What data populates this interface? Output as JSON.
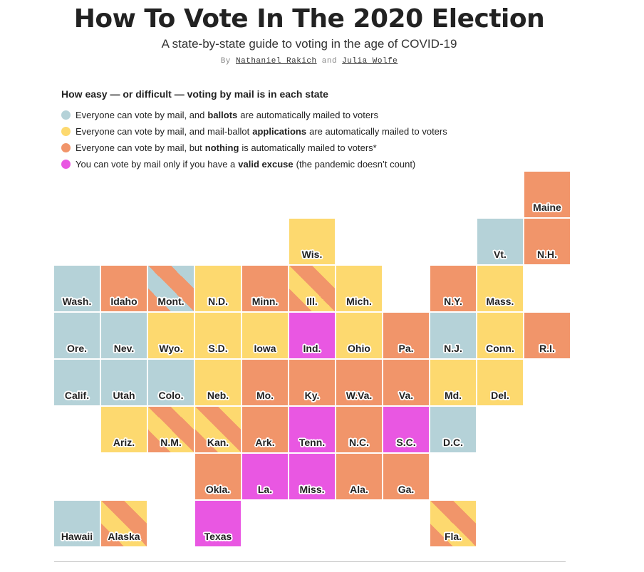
{
  "header": {
    "title": "How To Vote In The 2020 Election",
    "subtitle": "A state-by-state guide to voting in the age of COVID-19",
    "by": "By",
    "author1": "Nathaniel Rakich",
    "and": "and",
    "author2": "Julia Wolfe"
  },
  "colors": {
    "ballots": "#b5d2d8",
    "applications": "#fdd96f",
    "nothing": "#f1956a",
    "excuse": "#e957e2"
  },
  "legend": {
    "title": "How easy — or difficult — voting by mail is in each state",
    "items": [
      {
        "cat": "ballots",
        "pre": "Everyone can vote by mail, and",
        "bold": "ballots",
        "post": "are automatically mailed to voters"
      },
      {
        "cat": "applications",
        "pre": "Everyone can vote by mail, and mail-ballot",
        "bold": "applications",
        "post": "are automatically mailed to voters"
      },
      {
        "cat": "nothing",
        "pre": "Everyone can vote by mail, but",
        "bold": "nothing",
        "post": "is automatically mailed to voters*"
      },
      {
        "cat": "excuse",
        "pre": "You can vote by mail only if you have a",
        "bold": "valid excuse",
        "post": "(the pandemic doesn’t count)"
      }
    ]
  },
  "states": [
    {
      "label": "Maine",
      "row": 0,
      "col": 10,
      "fill": [
        "nothing"
      ]
    },
    {
      "label": "Wis.",
      "row": 1,
      "col": 5,
      "fill": [
        "applications"
      ]
    },
    {
      "label": "Vt.",
      "row": 1,
      "col": 9,
      "fill": [
        "ballots"
      ]
    },
    {
      "label": "N.H.",
      "row": 1,
      "col": 10,
      "fill": [
        "nothing"
      ]
    },
    {
      "label": "Wash.",
      "row": 2,
      "col": 0,
      "fill": [
        "ballots"
      ]
    },
    {
      "label": "Idaho",
      "row": 2,
      "col": 1,
      "fill": [
        "nothing"
      ]
    },
    {
      "label": "Mont.",
      "row": 2,
      "col": 2,
      "fill": [
        "nothing",
        "ballots"
      ]
    },
    {
      "label": "N.D.",
      "row": 2,
      "col": 3,
      "fill": [
        "applications"
      ]
    },
    {
      "label": "Minn.",
      "row": 2,
      "col": 4,
      "fill": [
        "nothing"
      ]
    },
    {
      "label": "Ill.",
      "row": 2,
      "col": 5,
      "fill": [
        "nothing",
        "applications"
      ]
    },
    {
      "label": "Mich.",
      "row": 2,
      "col": 6,
      "fill": [
        "applications"
      ]
    },
    {
      "label": "N.Y.",
      "row": 2,
      "col": 8,
      "fill": [
        "nothing"
      ]
    },
    {
      "label": "Mass.",
      "row": 2,
      "col": 9,
      "fill": [
        "applications"
      ]
    },
    {
      "label": "Ore.",
      "row": 3,
      "col": 0,
      "fill": [
        "ballots"
      ]
    },
    {
      "label": "Nev.",
      "row": 3,
      "col": 1,
      "fill": [
        "ballots"
      ]
    },
    {
      "label": "Wyo.",
      "row": 3,
      "col": 2,
      "fill": [
        "applications"
      ]
    },
    {
      "label": "S.D.",
      "row": 3,
      "col": 3,
      "fill": [
        "applications"
      ]
    },
    {
      "label": "Iowa",
      "row": 3,
      "col": 4,
      "fill": [
        "applications"
      ]
    },
    {
      "label": "Ind.",
      "row": 3,
      "col": 5,
      "fill": [
        "excuse"
      ]
    },
    {
      "label": "Ohio",
      "row": 3,
      "col": 6,
      "fill": [
        "applications"
      ]
    },
    {
      "label": "Pa.",
      "row": 3,
      "col": 7,
      "fill": [
        "nothing"
      ]
    },
    {
      "label": "N.J.",
      "row": 3,
      "col": 8,
      "fill": [
        "ballots"
      ]
    },
    {
      "label": "Conn.",
      "row": 3,
      "col": 9,
      "fill": [
        "applications"
      ]
    },
    {
      "label": "R.I.",
      "row": 3,
      "col": 10,
      "fill": [
        "nothing"
      ]
    },
    {
      "label": "Calif.",
      "row": 4,
      "col": 0,
      "fill": [
        "ballots"
      ]
    },
    {
      "label": "Utah",
      "row": 4,
      "col": 1,
      "fill": [
        "ballots"
      ]
    },
    {
      "label": "Colo.",
      "row": 4,
      "col": 2,
      "fill": [
        "ballots"
      ]
    },
    {
      "label": "Neb.",
      "row": 4,
      "col": 3,
      "fill": [
        "applications"
      ]
    },
    {
      "label": "Mo.",
      "row": 4,
      "col": 4,
      "fill": [
        "nothing"
      ]
    },
    {
      "label": "Ky.",
      "row": 4,
      "col": 5,
      "fill": [
        "nothing"
      ]
    },
    {
      "label": "W.Va.",
      "row": 4,
      "col": 6,
      "fill": [
        "nothing"
      ]
    },
    {
      "label": "Va.",
      "row": 4,
      "col": 7,
      "fill": [
        "nothing"
      ]
    },
    {
      "label": "Md.",
      "row": 4,
      "col": 8,
      "fill": [
        "applications"
      ]
    },
    {
      "label": "Del.",
      "row": 4,
      "col": 9,
      "fill": [
        "applications"
      ]
    },
    {
      "label": "Ariz.",
      "row": 5,
      "col": 1,
      "fill": [
        "applications"
      ]
    },
    {
      "label": "N.M.",
      "row": 5,
      "col": 2,
      "fill": [
        "nothing",
        "applications"
      ]
    },
    {
      "label": "Kan.",
      "row": 5,
      "col": 3,
      "fill": [
        "nothing",
        "applications"
      ]
    },
    {
      "label": "Ark.",
      "row": 5,
      "col": 4,
      "fill": [
        "nothing"
      ]
    },
    {
      "label": "Tenn.",
      "row": 5,
      "col": 5,
      "fill": [
        "excuse"
      ]
    },
    {
      "label": "N.C.",
      "row": 5,
      "col": 6,
      "fill": [
        "nothing"
      ]
    },
    {
      "label": "S.C.",
      "row": 5,
      "col": 7,
      "fill": [
        "excuse"
      ]
    },
    {
      "label": "D.C.",
      "row": 5,
      "col": 8,
      "fill": [
        "ballots"
      ]
    },
    {
      "label": "Okla.",
      "row": 6,
      "col": 3,
      "fill": [
        "nothing"
      ]
    },
    {
      "label": "La.",
      "row": 6,
      "col": 4,
      "fill": [
        "excuse"
      ]
    },
    {
      "label": "Miss.",
      "row": 6,
      "col": 5,
      "fill": [
        "excuse"
      ]
    },
    {
      "label": "Ala.",
      "row": 6,
      "col": 6,
      "fill": [
        "nothing"
      ]
    },
    {
      "label": "Ga.",
      "row": 6,
      "col": 7,
      "fill": [
        "nothing"
      ]
    },
    {
      "label": "Hawaii",
      "row": 7,
      "col": 0,
      "fill": [
        "ballots"
      ]
    },
    {
      "label": "Alaska",
      "row": 7,
      "col": 1,
      "fill": [
        "nothing",
        "applications"
      ]
    },
    {
      "label": "Texas",
      "row": 7,
      "col": 3,
      "fill": [
        "excuse"
      ]
    },
    {
      "label": "Fla.",
      "row": 7,
      "col": 8,
      "fill": [
        "nothing",
        "applications"
      ]
    }
  ]
}
